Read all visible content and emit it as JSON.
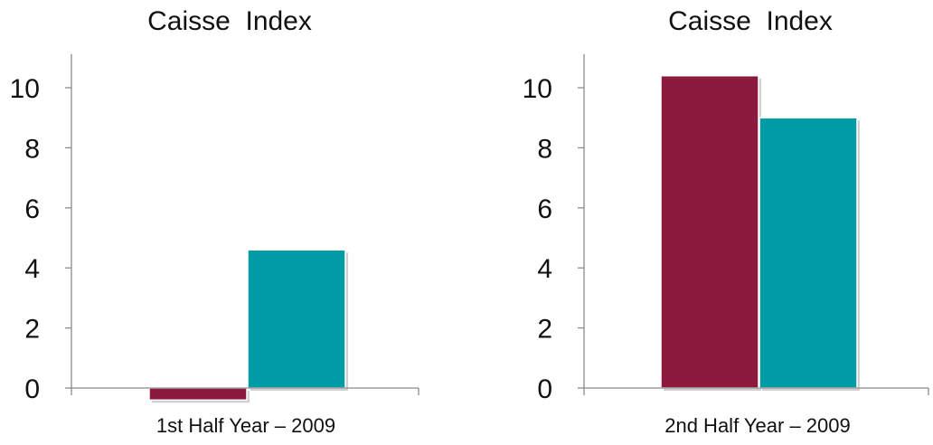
{
  "chart_data": [
    {
      "type": "bar",
      "title": "Caisse  Index",
      "categories": [
        "1st Half Year – 2009"
      ],
      "series": [
        {
          "values": [
            -0.4
          ],
          "color": "#8B1A3C"
        },
        {
          "values": [
            4.6
          ],
          "color": "#009CA6"
        }
      ],
      "yticks": [
        0,
        2,
        4,
        6,
        8,
        10
      ],
      "ylim": [
        -0.7,
        11
      ],
      "grid": false,
      "legend": "none"
    },
    {
      "type": "bar",
      "title": "Caisse  Index",
      "categories": [
        "2nd Half Year – 2009"
      ],
      "series": [
        {
          "values": [
            10.4
          ],
          "color": "#8B1A3C"
        },
        {
          "values": [
            9.0
          ],
          "color": "#009CA6"
        }
      ],
      "yticks": [
        0,
        2,
        4,
        6,
        8,
        10
      ],
      "ylim": [
        -0.7,
        11
      ],
      "grid": false,
      "legend": "none"
    }
  ]
}
